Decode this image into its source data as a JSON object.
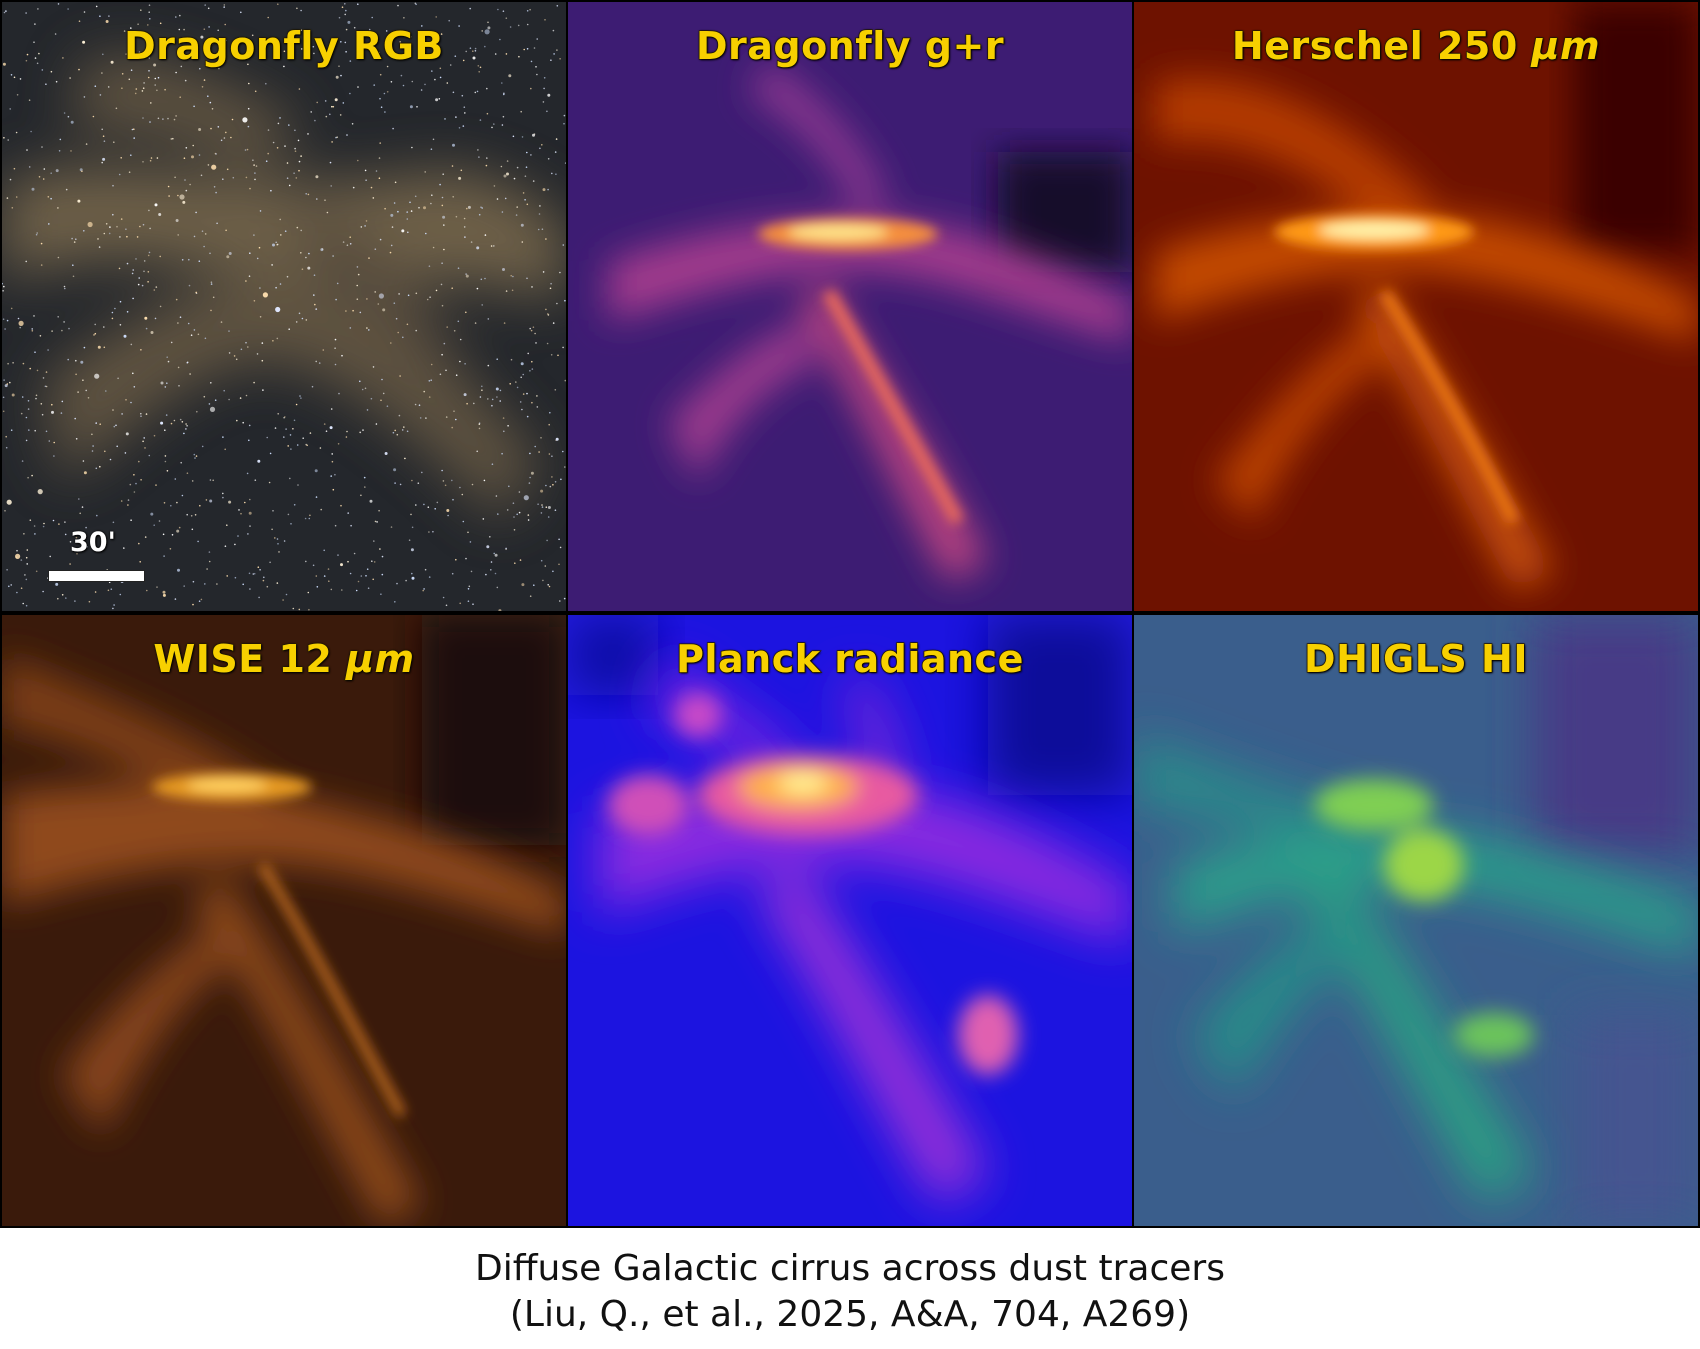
{
  "panels": [
    {
      "title": "Dragonfly RGB",
      "unit": "",
      "colormap": "true-color star field",
      "bg": "#2a2a2a"
    },
    {
      "title": "Dragonfly g+r",
      "unit": "",
      "colormap": "plasma",
      "bg": "#3b1a6b"
    },
    {
      "title": "Herschel 250 ",
      "unit": "μm",
      "colormap": "hot",
      "bg": "#6b0d00"
    },
    {
      "title": "WISE 12 ",
      "unit": "μm",
      "colormap": "copper",
      "bg": "#2a1208"
    },
    {
      "title": "Planck radiance",
      "unit": "",
      "colormap": "gnuplot2",
      "bg": "#1b12d8"
    },
    {
      "title": "DHIGLS HI",
      "unit": "",
      "colormap": "viridis",
      "bg": "#3d5a8a"
    }
  ],
  "scalebar": {
    "label": "30'"
  },
  "caption": {
    "line1": "Diffuse Galactic cirrus across dust tracers",
    "line2": "(Liu, Q., et al., 2025, A&A, 704, A269)"
  },
  "colors": {
    "label_fill": "#f7d000",
    "label_outline": "#3a2b00"
  }
}
